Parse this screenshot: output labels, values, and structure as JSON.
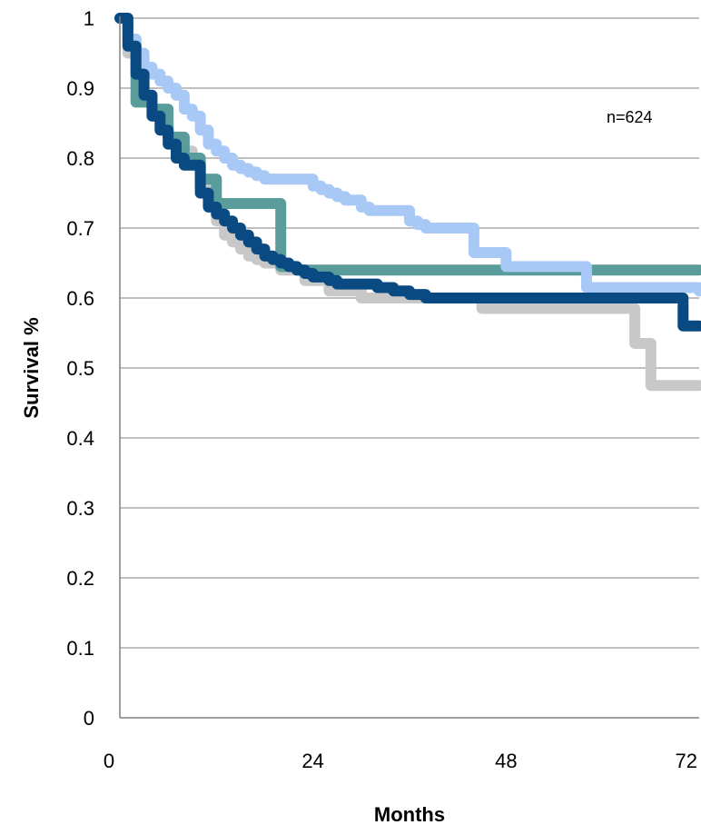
{
  "chart_data": {
    "type": "line",
    "title": "",
    "xlabel": "Months",
    "ylabel": "Survival %",
    "xlim": [
      0,
      72
    ],
    "ylim": [
      0,
      1
    ],
    "x_ticks": [
      "0",
      "24",
      "48",
      "72"
    ],
    "x_tick_values": [
      0,
      24,
      48,
      72
    ],
    "y_ticks": [
      "0",
      "0.1",
      "0.2",
      "0.3",
      "0.4",
      "0.5",
      "0.6",
      "0.7",
      "0.8",
      "0.9",
      "1"
    ],
    "y_tick_values": [
      0,
      0.1,
      0.2,
      0.3,
      0.4,
      0.5,
      0.6,
      0.7,
      0.8,
      0.9,
      1.0
    ],
    "grid": true,
    "annotation": "n=624",
    "series": [
      {
        "color": "#c8c8c8",
        "x": [
          0,
          1,
          2,
          3,
          4,
          5,
          6,
          7,
          8,
          9,
          10,
          11,
          12,
          13,
          14,
          15,
          16,
          17,
          18,
          20,
          23,
          26,
          30,
          45,
          64,
          66,
          72
        ],
        "y": [
          1.0,
          0.95,
          0.91,
          0.88,
          0.86,
          0.85,
          0.83,
          0.82,
          0.81,
          0.79,
          0.76,
          0.74,
          0.71,
          0.69,
          0.68,
          0.67,
          0.66,
          0.655,
          0.65,
          0.64,
          0.625,
          0.61,
          0.6,
          0.585,
          0.535,
          0.475,
          0.475
        ]
      },
      {
        "color": "#5a9b9b",
        "x": [
          0,
          1,
          2,
          4,
          6,
          8,
          10,
          12,
          19,
          20,
          22,
          72
        ],
        "y": [
          1.0,
          0.97,
          0.88,
          0.87,
          0.83,
          0.8,
          0.77,
          0.735,
          0.735,
          0.645,
          0.64,
          0.64
        ]
      },
      {
        "color": "#a8c8f5",
        "x": [
          0,
          1,
          2,
          3,
          4,
          5,
          6,
          7,
          8,
          9,
          10,
          11,
          12,
          13,
          14,
          15,
          16,
          17,
          18,
          24,
          25,
          26,
          27,
          28,
          30,
          31,
          32,
          36,
          37,
          38,
          39,
          40,
          41,
          44,
          46,
          48,
          57,
          58,
          60,
          72
        ],
        "y": [
          1.0,
          0.97,
          0.95,
          0.93,
          0.92,
          0.91,
          0.9,
          0.89,
          0.87,
          0.86,
          0.84,
          0.82,
          0.81,
          0.8,
          0.79,
          0.785,
          0.78,
          0.775,
          0.77,
          0.76,
          0.755,
          0.75,
          0.745,
          0.74,
          0.73,
          0.725,
          0.725,
          0.71,
          0.705,
          0.7,
          0.7,
          0.7,
          0.7,
          0.665,
          0.665,
          0.645,
          0.645,
          0.615,
          0.615,
          0.61
        ]
      },
      {
        "color": "#0a4a82",
        "x": [
          0,
          1,
          2,
          3,
          4,
          5,
          6,
          7,
          8,
          10,
          11,
          12,
          13,
          14,
          15,
          16,
          17,
          18,
          19,
          20,
          21,
          22,
          23,
          24,
          26,
          27,
          28,
          30,
          32,
          34,
          36,
          38,
          40,
          44,
          50,
          56,
          60,
          64,
          70,
          72
        ],
        "y": [
          1.0,
          0.96,
          0.92,
          0.89,
          0.86,
          0.84,
          0.82,
          0.8,
          0.79,
          0.75,
          0.73,
          0.72,
          0.71,
          0.7,
          0.69,
          0.68,
          0.67,
          0.66,
          0.655,
          0.65,
          0.645,
          0.64,
          0.635,
          0.63,
          0.625,
          0.62,
          0.62,
          0.62,
          0.615,
          0.61,
          0.605,
          0.6,
          0.6,
          0.6,
          0.6,
          0.6,
          0.6,
          0.6,
          0.56,
          0.56
        ]
      }
    ]
  }
}
